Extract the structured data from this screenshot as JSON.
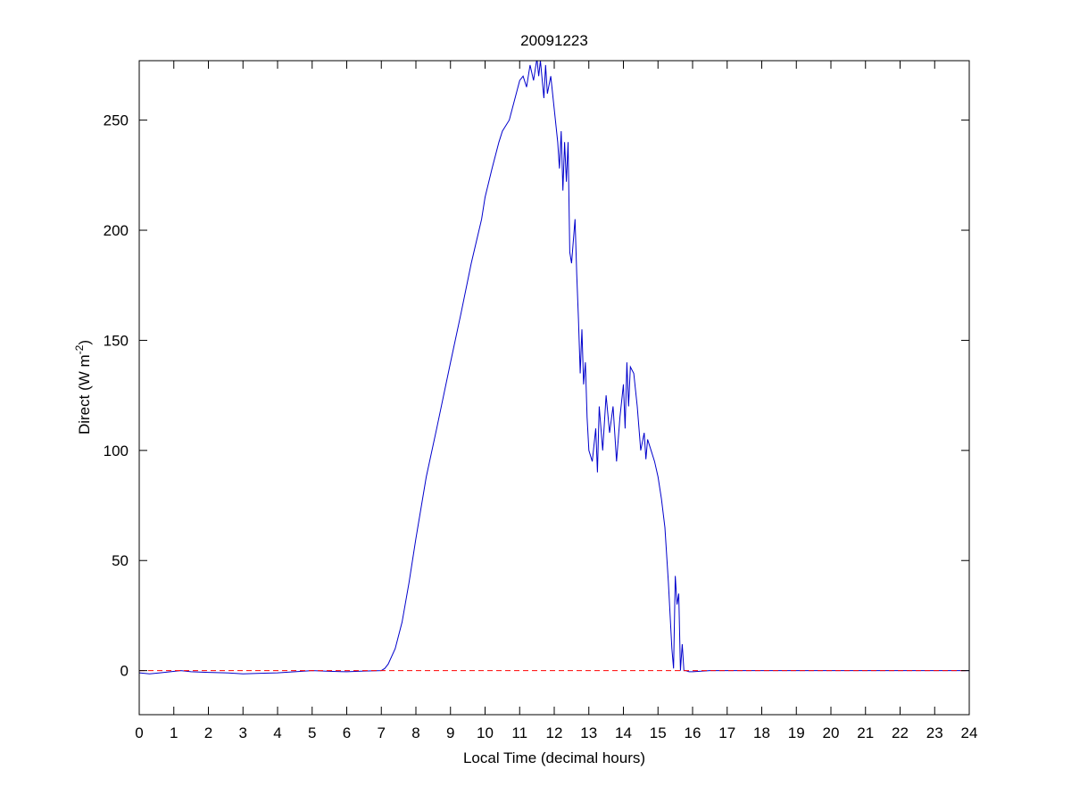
{
  "chart_data": {
    "type": "line",
    "title": "20091223",
    "xlabel": "Local Time (decimal hours)",
    "ylabel": {
      "main": "Direct (W m",
      "sup": "-2",
      "close": ")"
    },
    "xlim": [
      0,
      24
    ],
    "ylim": [
      -20,
      277
    ],
    "xticks": [
      0,
      1,
      2,
      3,
      4,
      5,
      6,
      7,
      8,
      9,
      10,
      11,
      12,
      13,
      14,
      15,
      16,
      17,
      18,
      19,
      20,
      21,
      22,
      23,
      24
    ],
    "yticks": [
      0,
      50,
      100,
      150,
      200,
      250
    ],
    "grid": false,
    "series": [
      {
        "color": "#0000cc",
        "style": "solid",
        "x": [
          0,
          0.3,
          0.6,
          0.9,
          1.2,
          1.5,
          2.0,
          2.5,
          3.0,
          3.5,
          4.0,
          4.5,
          5.0,
          5.5,
          6.0,
          6.5,
          7.0,
          7.1,
          7.2,
          7.4,
          7.6,
          7.8,
          8.0,
          8.3,
          8.6,
          9.0,
          9.3,
          9.6,
          9.9,
          10.0,
          10.2,
          10.4,
          10.5,
          10.7,
          10.9,
          11.0,
          11.1,
          11.2,
          11.3,
          11.4,
          11.5,
          11.55,
          11.6,
          11.7,
          11.75,
          11.8,
          11.9,
          12.0,
          12.1,
          12.15,
          12.2,
          12.25,
          12.3,
          12.35,
          12.4,
          12.45,
          12.5,
          12.6,
          12.65,
          12.7,
          12.75,
          12.8,
          12.85,
          12.9,
          12.95,
          13.0,
          13.1,
          13.2,
          13.25,
          13.3,
          13.4,
          13.5,
          13.6,
          13.7,
          13.8,
          13.9,
          14.0,
          14.05,
          14.1,
          14.15,
          14.2,
          14.3,
          14.4,
          14.5,
          14.6,
          14.65,
          14.7,
          14.8,
          14.9,
          15.0,
          15.1,
          15.2,
          15.3,
          15.4,
          15.45,
          15.5,
          15.55,
          15.6,
          15.65,
          15.7,
          15.75,
          15.8,
          15.9,
          16.0,
          16.5,
          17,
          18,
          19,
          20,
          21,
          22,
          23,
          24
        ],
        "y": [
          -1,
          -1.5,
          -1,
          -0.5,
          0,
          -0.5,
          -0.8,
          -1,
          -1.5,
          -1.2,
          -1,
          -0.5,
          0,
          -0.3,
          -0.5,
          -0.2,
          0,
          1,
          3,
          10,
          22,
          40,
          60,
          88,
          110,
          140,
          162,
          185,
          205,
          215,
          228,
          240,
          245,
          250,
          262,
          268,
          270,
          265,
          275,
          268,
          278,
          270,
          277,
          260,
          275,
          262,
          270,
          255,
          240,
          228,
          245,
          218,
          240,
          222,
          240,
          190,
          185,
          205,
          180,
          160,
          135,
          155,
          130,
          140,
          115,
          100,
          95,
          110,
          90,
          120,
          100,
          125,
          108,
          120,
          95,
          115,
          130,
          110,
          140,
          120,
          138,
          135,
          120,
          100,
          108,
          96,
          105,
          100,
          95,
          88,
          78,
          65,
          40,
          10,
          1,
          43,
          30,
          35,
          0,
          12,
          0,
          0,
          -0.5,
          -0.5,
          0,
          0,
          0,
          0,
          0,
          0,
          0,
          0,
          0
        ]
      },
      {
        "color": "#ff0000",
        "style": "dashed",
        "x": [
          0,
          24
        ],
        "y": [
          0,
          0
        ]
      }
    ]
  }
}
